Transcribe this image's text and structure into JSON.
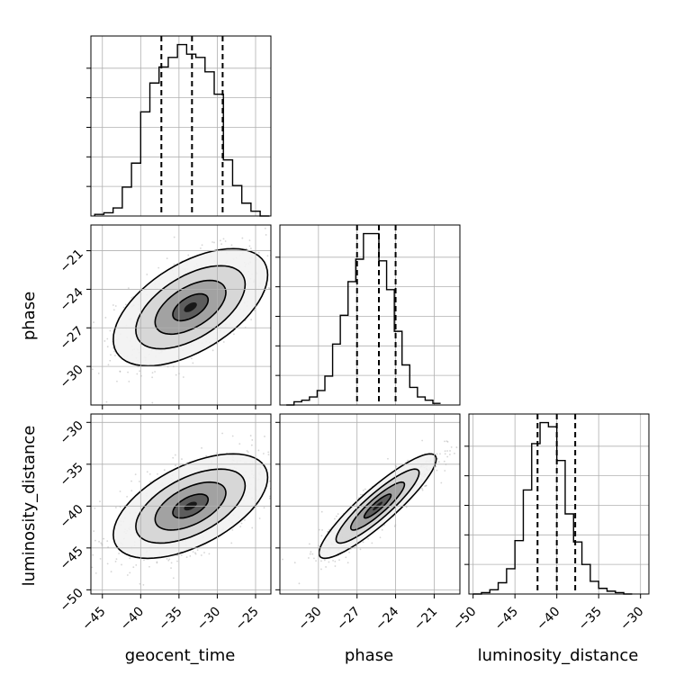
{
  "chart_data": {
    "type": "corner",
    "params": [
      "geocent_time",
      "phase",
      "luminosity_distance"
    ],
    "axis_labels": {
      "geocent_time": "geocent_time",
      "phase": "phase",
      "luminosity_distance": "luminosity_distance"
    },
    "ranges": {
      "geocent_time": [
        -46.5,
        -23.0
      ],
      "phase": [
        -33.0,
        -19.0
      ],
      "luminosity_distance": [
        -50.5,
        -29.0
      ]
    },
    "ticks": {
      "geocent_time": [
        -45,
        -40,
        -35,
        -30,
        -25
      ],
      "phase": [
        -30,
        -27,
        -24,
        -21
      ],
      "luminosity_distance": [
        -50,
        -45,
        -40,
        -35,
        -30
      ]
    },
    "tick_labels": {
      "geocent_time": [
        "−45",
        "−40",
        "−35",
        "−30",
        "−25"
      ],
      "phase": [
        "−30",
        "−27",
        "−24",
        "−21"
      ],
      "luminosity_distance": [
        "−50",
        "−45",
        "−40",
        "−35",
        "−30"
      ]
    },
    "quantiles": {
      "geocent_time": [
        -37.3,
        -33.3,
        -29.3
      ],
      "phase": [
        -27.0,
        -25.3,
        -24.0
      ],
      "luminosity_distance": [
        -42.3,
        -40.0,
        -37.8
      ]
    },
    "histograms": {
      "geocent_time": {
        "bins": [
          -46,
          -44.8,
          -43.6,
          -42.4,
          -41.2,
          -40.0,
          -38.8,
          -37.6,
          -36.4,
          -35.2,
          -34.0,
          -32.8,
          -31.6,
          -30.4,
          -29.2,
          -28.0,
          -26.8,
          -25.6,
          -24.4,
          -23.2
        ],
        "counts": [
          1,
          2,
          5,
          18,
          33,
          65,
          83,
          93,
          99,
          107,
          101,
          99,
          90,
          76,
          35,
          19,
          8,
          3,
          0
        ]
      },
      "phase": {
        "bins": [
          -32.5,
          -31.9,
          -31.3,
          -30.7,
          -30.1,
          -29.5,
          -28.9,
          -28.3,
          -27.7,
          -27.1,
          -26.5,
          -25.9,
          -25.3,
          -24.7,
          -24.1,
          -23.5,
          -22.9,
          -22.3,
          -21.7,
          -21.1,
          -20.5
        ],
        "counts": [
          0,
          2,
          3,
          5,
          9,
          18,
          38,
          56,
          77,
          91,
          107,
          107,
          90,
          72,
          46,
          25,
          11,
          5,
          3,
          1
        ]
      },
      "luminosity_distance": {
        "bins": [
          -50,
          -49,
          -48,
          -47,
          -46,
          -45,
          -44,
          -43,
          -42,
          -41,
          -40,
          -39,
          -38,
          -37,
          -36,
          -35,
          -34,
          -33,
          -32,
          -31
        ],
        "counts": [
          0,
          1,
          3,
          8,
          18,
          38,
          74,
          107,
          122,
          119,
          95,
          57,
          37,
          21,
          9,
          4,
          2,
          1,
          0
        ]
      }
    },
    "correlations": {
      "phase_vs_geocent_time": 0.55,
      "luminosity_distance_vs_geocent_time": 0.55,
      "luminosity_distance_vs_phase": 0.9
    },
    "centers": {
      "geocent_time": -33.5,
      "phase": -25.4,
      "luminosity_distance": -40.0
    },
    "spreads": {
      "geocent_time": 4.2,
      "phase": 1.9,
      "luminosity_distance": 2.6
    },
    "grid": true,
    "colors": {
      "line": "#000000",
      "scatter": "#888888",
      "grid": "#b0b0b0"
    }
  }
}
